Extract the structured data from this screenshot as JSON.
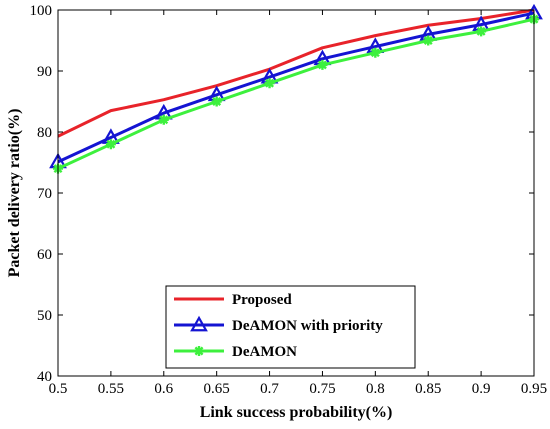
{
  "chart_data": {
    "type": "line",
    "title": "",
    "xlabel": "Link success probability(%)",
    "ylabel": "Packet delivery ratio(%)",
    "x": [
      0.5,
      0.55,
      0.6,
      0.65,
      0.7,
      0.75,
      0.8,
      0.85,
      0.9,
      0.95
    ],
    "x_tick_labels": [
      "0.5",
      "0.55",
      "0.6",
      "0.65",
      "0.7",
      "0.75",
      "0.8",
      "0.85",
      "0.9",
      "0.95"
    ],
    "y_ticks": [
      40,
      50,
      60,
      70,
      80,
      90,
      100
    ],
    "xlim": [
      0.5,
      0.95
    ],
    "ylim": [
      40,
      100
    ],
    "grid": false,
    "legend_position": "bottom-center",
    "series": [
      {
        "name": "Proposed",
        "color": "#e8232a",
        "marker": "none",
        "values": [
          79.3,
          83.5,
          85.3,
          87.6,
          90.3,
          93.8,
          95.8,
          97.5,
          98.6,
          100
        ]
      },
      {
        "name": "DeAMON with priority",
        "color": "#1414d2",
        "marker": "triangle",
        "values": [
          75.1,
          79.1,
          83.1,
          86.1,
          89.0,
          92.0,
          94.0,
          96.0,
          97.6,
          99.5
        ]
      },
      {
        "name": "DeAMON",
        "color": "#3df03d",
        "marker": "star",
        "values": [
          74.0,
          78.0,
          82.0,
          85.0,
          88.0,
          91.0,
          93.0,
          95.0,
          96.5,
          98.5
        ]
      }
    ]
  }
}
